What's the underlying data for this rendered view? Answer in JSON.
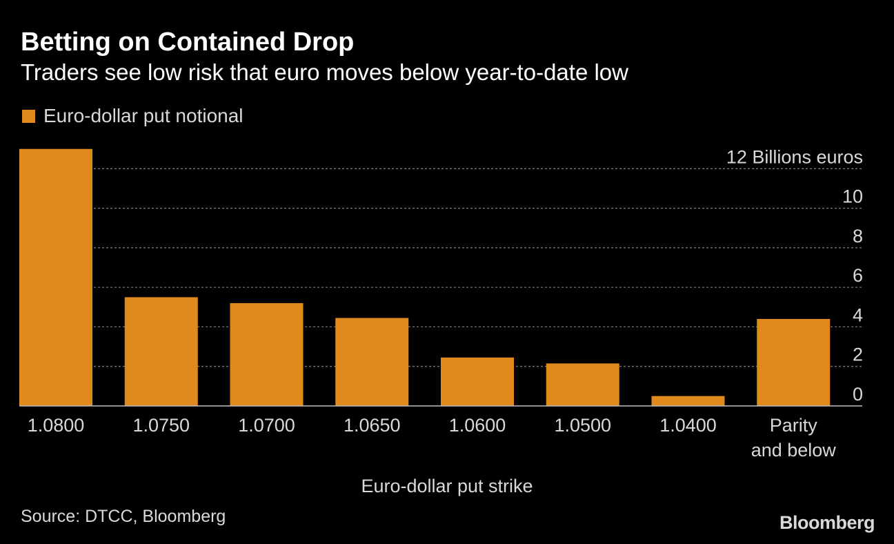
{
  "title": "Betting on Contained Drop",
  "subtitle": "Traders see low risk that euro moves below year-to-date low",
  "legend": {
    "label": "Euro-dollar put notional"
  },
  "colors": {
    "bar": "#e08a1e",
    "grid": "#808080",
    "text": "#d9d9d9",
    "background": "#000000"
  },
  "chart_data": {
    "type": "bar",
    "categories": [
      "1.0800",
      "1.0750",
      "1.0700",
      "1.0650",
      "1.0600",
      "1.0500",
      "1.0400",
      "Parity and below"
    ],
    "series": [
      {
        "name": "Euro-dollar put notional",
        "values": [
          13.0,
          5.5,
          5.2,
          4.45,
          2.45,
          2.15,
          0.5,
          4.4
        ]
      }
    ],
    "y_tick_labels": [
      "0",
      "2",
      "4",
      "6",
      "8",
      "10",
      "12 Billions euros"
    ],
    "y_ticks": [
      0,
      2,
      4,
      6,
      8,
      10,
      12
    ],
    "ylim": [
      0,
      13.2
    ],
    "ylabel": "Billions euros",
    "xlabel": "Euro-dollar put strike",
    "grid": true,
    "y_axis_position": "right",
    "legend_position": "top-left"
  },
  "footer": {
    "source": "Source: DTCC, Bloomberg",
    "brand": "Bloomberg"
  }
}
